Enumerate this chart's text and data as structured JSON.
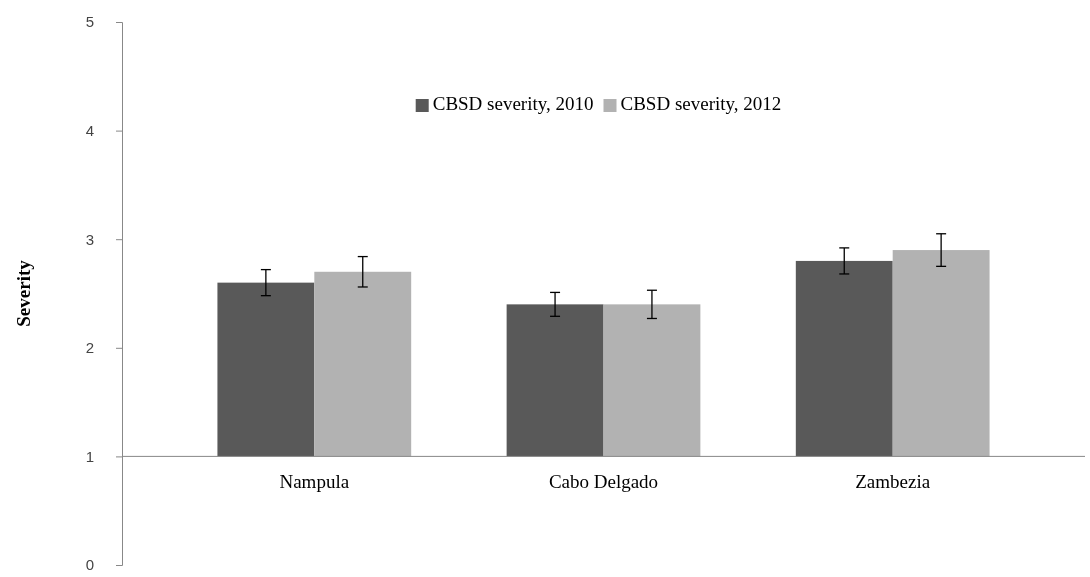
{
  "chart_data": {
    "type": "bar",
    "ylabel": "Severity",
    "categories": [
      "Nampula",
      "Cabo Delgado",
      "Zambezia"
    ],
    "series": [
      {
        "name": "CBSD severity, 2010",
        "color": "#595959",
        "base": [
          1,
          1,
          1
        ],
        "values": [
          1.6,
          1.4,
          1.8
        ],
        "errors": [
          0.12,
          0.11,
          0.12
        ]
      },
      {
        "name": "CBSD severity, 2012",
        "color": "#b2b2b2",
        "base": [
          1,
          1,
          1
        ],
        "values": [
          1.7,
          1.4,
          1.9
        ],
        "errors": [
          0.14,
          0.13,
          0.15
        ]
      }
    ],
    "ylim": [
      0,
      5
    ],
    "yticks": [
      0,
      1,
      2,
      3,
      4,
      5
    ],
    "grid": false,
    "legend": "top"
  }
}
